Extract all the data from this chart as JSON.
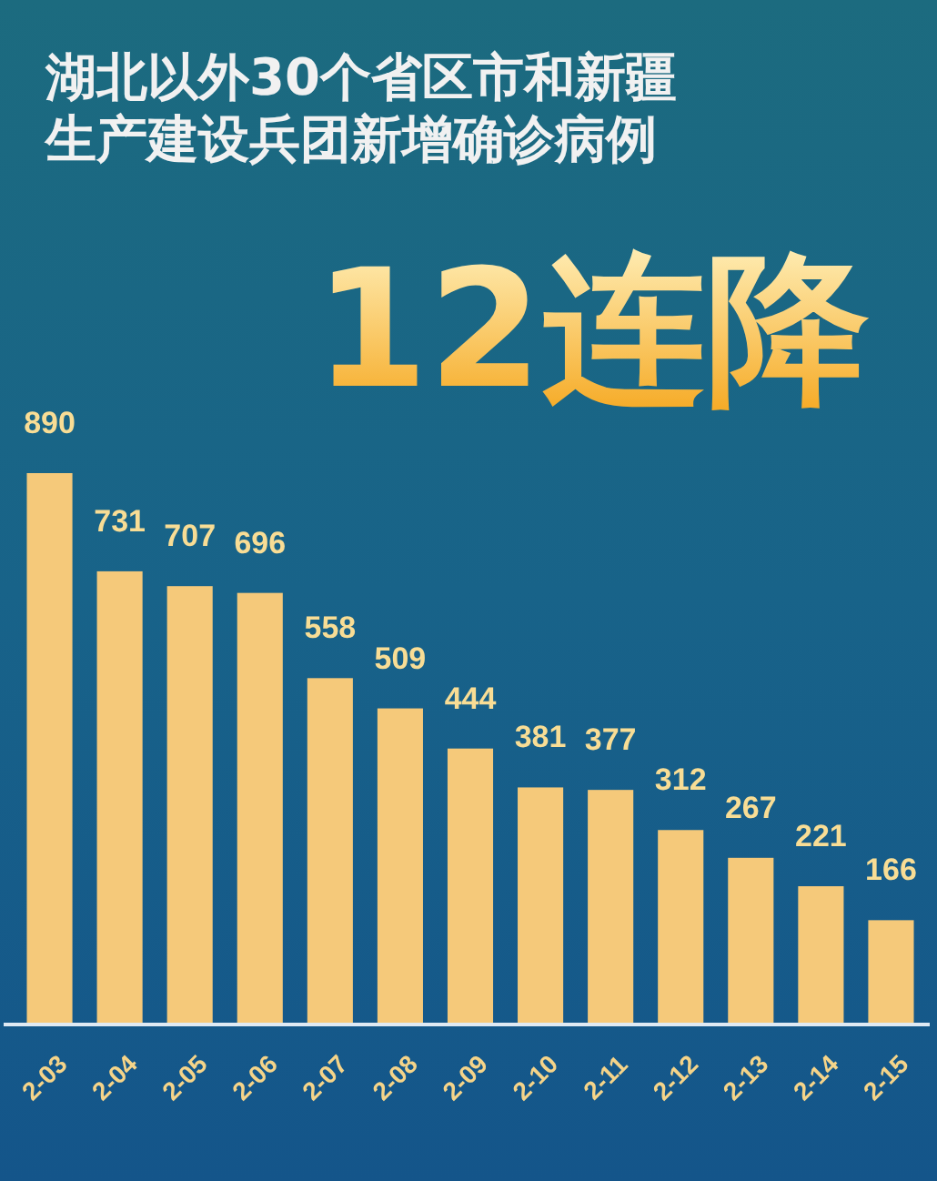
{
  "chart_data": {
    "type": "bar",
    "title": "湖北以外30个省区市和新疆生产建设兵团新增确诊病例",
    "subtitle": "12连降",
    "categories": [
      "2-03",
      "2-04",
      "2-05",
      "2-06",
      "2-07",
      "2-08",
      "2-09",
      "2-10",
      "2-11",
      "2-12",
      "2-13",
      "2-14",
      "2-15"
    ],
    "values": [
      890,
      731,
      707,
      696,
      558,
      509,
      444,
      381,
      377,
      312,
      267,
      221,
      166
    ],
    "color": "#f5c97a",
    "data_labels": true
  }
}
